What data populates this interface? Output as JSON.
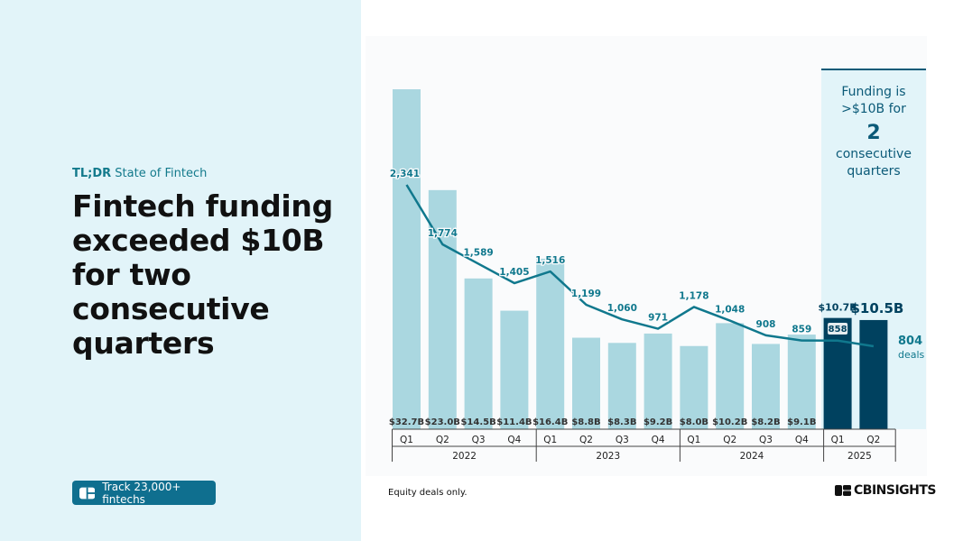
{
  "left": {
    "eyebrow_bold": "TL;DR",
    "eyebrow_rest": " State of Fintech",
    "headline": "Fintech funding exceeded $10B for two consecutive quarters",
    "button_label": "Track 23,000+ fintechs",
    "button_icon": "cards-icon"
  },
  "footer": {
    "note": "Equity deals only.",
    "logo_text": "CBINSIGHTS"
  },
  "colors": {
    "bar": "#aad7e0",
    "bar_highlight": "#00415f",
    "line": "#10788d",
    "callout_bg": "#e2f4f9",
    "callout_border": "#0b5a78",
    "left_panel": "#e2f4f9",
    "button": "#0f6f8f"
  },
  "chart_data": {
    "type": "bar",
    "categories": [
      "Q1",
      "Q2",
      "Q3",
      "Q4",
      "Q1",
      "Q2",
      "Q3",
      "Q4",
      "Q1",
      "Q2",
      "Q3",
      "Q4",
      "Q1",
      "Q2"
    ],
    "year_groups": [
      {
        "label": "2022",
        "count": 4
      },
      {
        "label": "2023",
        "count": 4
      },
      {
        "label": "2024",
        "count": 4
      },
      {
        "label": "2025",
        "count": 2
      }
    ],
    "series": [
      {
        "values": [
          32.7,
          23.0,
          14.5,
          11.4,
          16.4,
          8.8,
          8.3,
          9.2,
          8.0,
          10.2,
          8.2,
          9.1,
          10.7,
          10.5
        ],
        "labels": [
          "$32.7B",
          "$23.0B",
          "$14.5B",
          "$11.4B",
          "$16.4B",
          "$8.8B",
          "$8.3B",
          "$9.2B",
          "$8.0B",
          "$10.2B",
          "$8.2B",
          "$9.1B",
          "$10.7B",
          "$10.5B"
        ]
      },
      {
        "name": "deals",
        "values": [
          2341,
          1774,
          1589,
          1405,
          1516,
          1199,
          1060,
          971,
          1178,
          1048,
          908,
          859,
          858,
          804
        ],
        "labels": [
          "2,341",
          "1,774",
          "1,589",
          "1,405",
          "1,516",
          "1,199",
          "1,060",
          "971",
          "1,178",
          "1,048",
          "908",
          "859",
          "858",
          "804"
        ]
      }
    ],
    "highlight_indices": [
      12,
      13
    ],
    "callout": {
      "line1": "Funding is",
      "line2": ">$10B for",
      "number": "2",
      "line3": "consecutive",
      "line4": "quarters"
    },
    "ylim": [
      0,
      32.7
    ],
    "line_ylim": [
      804,
      2341
    ]
  }
}
